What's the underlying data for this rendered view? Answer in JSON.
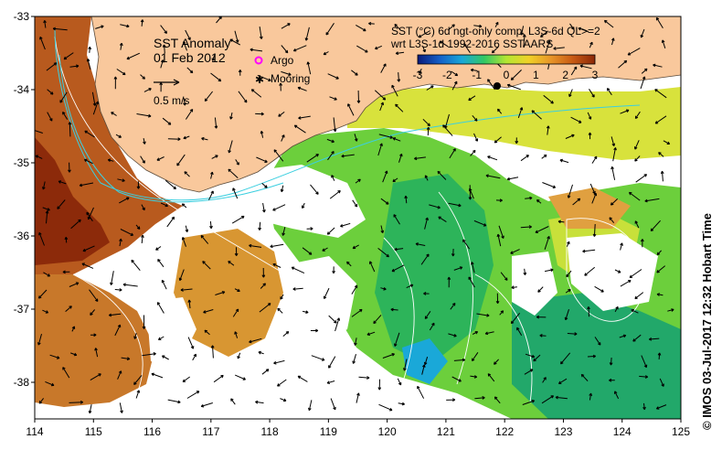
{
  "title": "SST Anomaly",
  "date": "01 Feb 2012",
  "scale_label": "0.5 m/s",
  "legend": {
    "argo": "Argo",
    "mooring": "Mooring"
  },
  "product_line1": "SST (°C) 6d ngt-only comp, L3S-6d QL>=2",
  "product_line2": "wrt L3S-1d 1992-2016 SSTAARS",
  "colorbar": {
    "min": -3,
    "max": 3,
    "ticks": [
      "-3",
      "-2",
      "-1",
      "0",
      "1",
      "2",
      "3"
    ],
    "colors": [
      "#0a1a7a",
      "#1560c8",
      "#1aa8d8",
      "#32c864",
      "#b4e632",
      "#f0d228",
      "#e89628",
      "#c85a14",
      "#8c2808"
    ]
  },
  "colors": {
    "land": "#f9c89c",
    "no_data": "#ffffff",
    "contour": "#ffffff",
    "contour_cyan": "#3ccfe0",
    "argo_marker": "#ff00ff"
  },
  "credit": "© IMOS 03-Jul-2017 12:32 Hobart Time",
  "x_axis": {
    "range": [
      114,
      125
    ],
    "ticks": [
      "114",
      "115",
      "116",
      "117",
      "118",
      "119",
      "120",
      "121",
      "122",
      "123",
      "124",
      "125"
    ]
  },
  "y_axis": {
    "range": [
      -38.5,
      -33
    ],
    "ticks": [
      "-33",
      "-34",
      "-35",
      "-36",
      "-37",
      "-38"
    ]
  }
}
